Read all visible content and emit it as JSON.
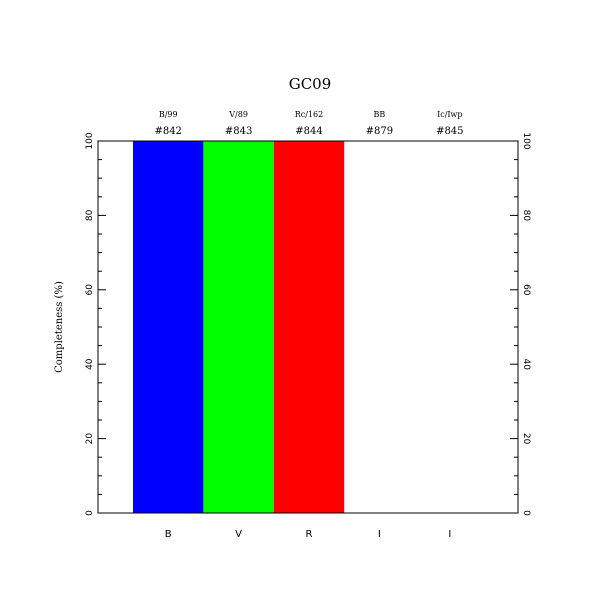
{
  "chart_data": {
    "type": "bar",
    "title": "GC09",
    "ylabel": "Completeness (%)",
    "xlabel": "",
    "ylim": [
      0,
      100
    ],
    "yticks": [
      0,
      20,
      40,
      60,
      80,
      100
    ],
    "categories": [
      "B",
      "V",
      "R",
      "I",
      "I"
    ],
    "filter_names": [
      "B/99",
      "V/89",
      "Rc/162",
      "BB",
      "Ic/Iwp"
    ],
    "filter_ids": [
      "#842",
      "#843",
      "#844",
      "#879",
      "#845"
    ],
    "values": [
      100,
      100,
      100,
      0,
      0
    ],
    "colors": [
      "#0000ff",
      "#00ff00",
      "#ff0000",
      "#ffffff",
      "#ffffff"
    ],
    "grid": false,
    "legend": "none"
  }
}
